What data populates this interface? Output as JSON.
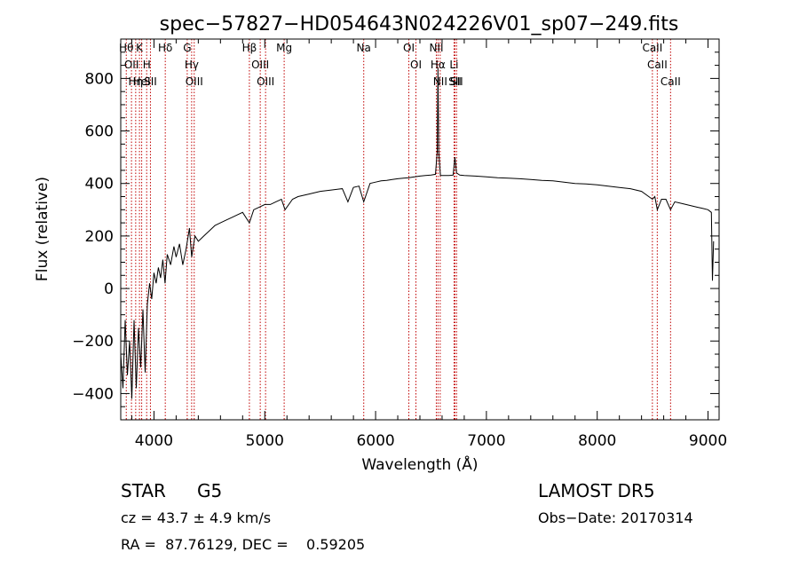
{
  "chart_data": {
    "type": "line",
    "title": "spec−57827−HD054643N024226V01_sp07−249.fits",
    "xlabel": "Wavelength (Å)",
    "ylabel": "Flux (relative)",
    "xlim": [
      3700,
      9100
    ],
    "ylim": [
      -500,
      950
    ],
    "x_ticks": [
      4000,
      5000,
      6000,
      7000,
      8000,
      9000
    ],
    "x_tick_labels": [
      "4000",
      "5000",
      "6000",
      "7000",
      "8000",
      "9000"
    ],
    "y_ticks": [
      -400,
      -200,
      0,
      200,
      400,
      600,
      800
    ],
    "y_tick_labels": [
      "−400",
      "−200",
      "0",
      "200",
      "400",
      "600",
      "800"
    ],
    "grid": false,
    "legend": "none",
    "series": [
      {
        "style": "solid",
        "color": "#000000",
        "points": [
          [
            3700,
            -250
          ],
          [
            3720,
            -380
          ],
          [
            3740,
            -120
          ],
          [
            3760,
            -330
          ],
          [
            3780,
            -200
          ],
          [
            3800,
            -420
          ],
          [
            3820,
            -120
          ],
          [
            3840,
            -380
          ],
          [
            3860,
            -150
          ],
          [
            3880,
            -300
          ],
          [
            3900,
            -80
          ],
          [
            3920,
            -320
          ],
          [
            3940,
            -60
          ],
          [
            3960,
            20
          ],
          [
            3980,
            -40
          ],
          [
            4000,
            60
          ],
          [
            4020,
            20
          ],
          [
            4040,
            80
          ],
          [
            4060,
            40
          ],
          [
            4080,
            110
          ],
          [
            4100,
            20
          ],
          [
            4120,
            130
          ],
          [
            4150,
            90
          ],
          [
            4180,
            160
          ],
          [
            4200,
            120
          ],
          [
            4230,
            170
          ],
          [
            4260,
            90
          ],
          [
            4290,
            150
          ],
          [
            4320,
            230
          ],
          [
            4340,
            120
          ],
          [
            4370,
            200
          ],
          [
            4400,
            180
          ],
          [
            4450,
            200
          ],
          [
            4500,
            220
          ],
          [
            4550,
            240
          ],
          [
            4600,
            250
          ],
          [
            4650,
            260
          ],
          [
            4700,
            270
          ],
          [
            4750,
            280
          ],
          [
            4800,
            290
          ],
          [
            4861,
            250
          ],
          [
            4900,
            300
          ],
          [
            4950,
            310
          ],
          [
            5000,
            320
          ],
          [
            5050,
            320
          ],
          [
            5100,
            330
          ],
          [
            5150,
            340
          ],
          [
            5183,
            300
          ],
          [
            5250,
            340
          ],
          [
            5300,
            350
          ],
          [
            5400,
            360
          ],
          [
            5500,
            370
          ],
          [
            5600,
            375
          ],
          [
            5700,
            380
          ],
          [
            5750,
            330
          ],
          [
            5800,
            385
          ],
          [
            5850,
            390
          ],
          [
            5893,
            330
          ],
          [
            5950,
            400
          ],
          [
            6000,
            405
          ],
          [
            6050,
            410
          ],
          [
            6100,
            412
          ],
          [
            6150,
            415
          ],
          [
            6200,
            418
          ],
          [
            6250,
            420
          ],
          [
            6300,
            422
          ],
          [
            6350,
            425
          ],
          [
            6400,
            428
          ],
          [
            6450,
            430
          ],
          [
            6500,
            432
          ],
          [
            6540,
            435
          ],
          [
            6556,
            520
          ],
          [
            6563,
            840
          ],
          [
            6570,
            520
          ],
          [
            6585,
            430
          ],
          [
            6620,
            430
          ],
          [
            6660,
            430
          ],
          [
            6700,
            432
          ],
          [
            6716,
            500
          ],
          [
            6731,
            440
          ],
          [
            6760,
            432
          ],
          [
            6800,
            430
          ],
          [
            6900,
            428
          ],
          [
            7000,
            425
          ],
          [
            7100,
            422
          ],
          [
            7200,
            420
          ],
          [
            7300,
            418
          ],
          [
            7400,
            415
          ],
          [
            7500,
            412
          ],
          [
            7600,
            410
          ],
          [
            7700,
            405
          ],
          [
            7800,
            400
          ],
          [
            7900,
            398
          ],
          [
            8000,
            395
          ],
          [
            8100,
            390
          ],
          [
            8200,
            385
          ],
          [
            8300,
            380
          ],
          [
            8400,
            370
          ],
          [
            8498,
            340
          ],
          [
            8520,
            350
          ],
          [
            8542,
            300
          ],
          [
            8580,
            340
          ],
          [
            8620,
            340
          ],
          [
            8662,
            300
          ],
          [
            8700,
            330
          ],
          [
            8750,
            325
          ],
          [
            8800,
            320
          ],
          [
            8850,
            315
          ],
          [
            8900,
            310
          ],
          [
            8950,
            305
          ],
          [
            9000,
            300
          ],
          [
            9030,
            290
          ],
          [
            9040,
            30
          ],
          [
            9050,
            180
          ]
        ]
      }
    ],
    "line_color": "#c00000",
    "lines": [
      {
        "x": 3750,
        "label": "Hθ"
      },
      {
        "x": 3797,
        "label": "OII"
      },
      {
        "x": 3835,
        "label": "Hη"
      },
      {
        "x": 3869,
        "label": "K"
      },
      {
        "x": 3889,
        "label": "HeI"
      },
      {
        "x": 3934,
        "label": "H"
      },
      {
        "x": 3968,
        "label": "SII"
      },
      {
        "x": 4102,
        "label": "Hδ"
      },
      {
        "x": 4300,
        "label": "G"
      },
      {
        "x": 4340,
        "label": "Hγ"
      },
      {
        "x": 4363,
        "label": "OIII"
      },
      {
        "x": 4861,
        "label": "Hβ"
      },
      {
        "x": 4959,
        "label": "OIII"
      },
      {
        "x": 5007,
        "label": "OIII"
      },
      {
        "x": 5175,
        "label": "Mg"
      },
      {
        "x": 5893,
        "label": "Na"
      },
      {
        "x": 6300,
        "label": "OI"
      },
      {
        "x": 6364,
        "label": "OI"
      },
      {
        "x": 6548,
        "label": "NII"
      },
      {
        "x": 6563,
        "label": "Hα"
      },
      {
        "x": 6583,
        "label": "NII"
      },
      {
        "x": 6708,
        "label": "Li"
      },
      {
        "x": 6716,
        "label": "SII"
      },
      {
        "x": 6731,
        "label": "SII"
      },
      {
        "x": 8498,
        "label": "CaII"
      },
      {
        "x": 8542,
        "label": "CaII"
      },
      {
        "x": 8662,
        "label": "CaII"
      }
    ]
  },
  "info": {
    "class": "STAR",
    "subclass": "G5",
    "survey": "LAMOST DR5",
    "cz": "cz = 43.7 ± 4.9 km/s",
    "obs_date": "Obs−Date: 20170314",
    "radec": "RA =  87.76129, DEC =    0.59205"
  }
}
